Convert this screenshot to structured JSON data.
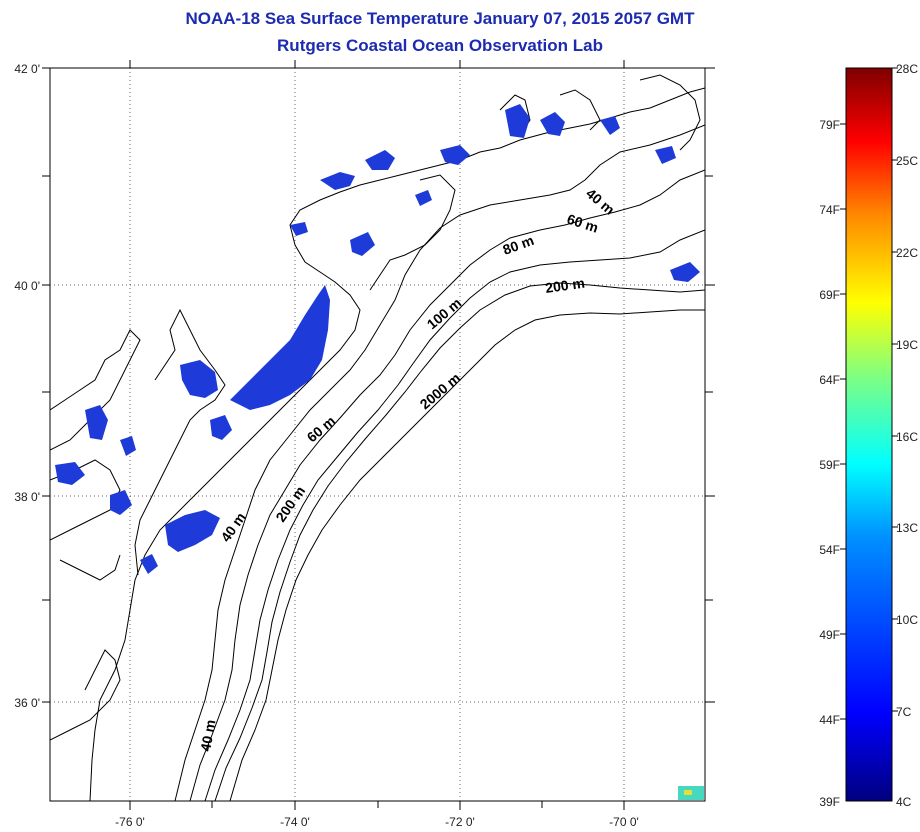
{
  "title": "NOAA-18 Sea Surface Temperature January 07, 2015 2057 GMT",
  "subtitle": "Rutgers Coastal Ocean Observation Lab",
  "map": {
    "lat_labels": [
      "42 0'",
      "40 0'",
      "38 0'",
      "36 0'"
    ],
    "lon_labels": [
      "-76 0'",
      "-74 0'",
      "-72 0'",
      "-70 0'"
    ],
    "grid": "dotted",
    "contour_labels": [
      "40 m",
      "60 m",
      "80 m",
      "200 m",
      "100 m",
      "2000 m",
      "60 m",
      "200 m",
      "40 m",
      "40 m"
    ]
  },
  "colorbar": {
    "fahrenheit_labels": [
      "79F",
      "74F",
      "69F",
      "64F",
      "59F",
      "54F",
      "49F",
      "44F",
      "39F"
    ],
    "celsius_labels": [
      "28C",
      "25C",
      "22C",
      "19C",
      "16C",
      "13C",
      "10C",
      "7C",
      "4C"
    ],
    "colors": [
      "#7f0000",
      "#ff0000",
      "#ff8800",
      "#ffff00",
      "#80ff80",
      "#00ffff",
      "#0080ff",
      "#0000ff",
      "#00007f"
    ]
  },
  "sst_color": "#1e3ad8"
}
